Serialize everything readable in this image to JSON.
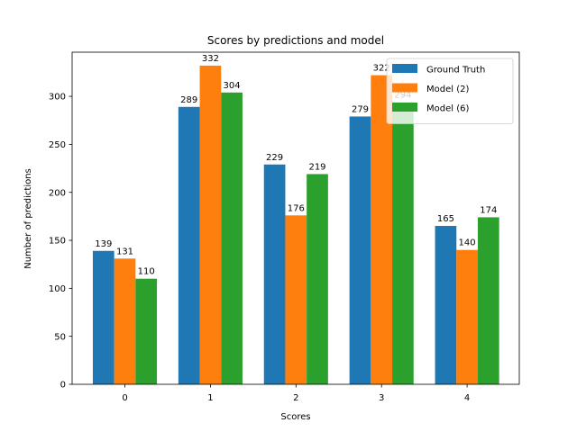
{
  "chart_data": {
    "type": "bar",
    "title": "Scores by predictions and model",
    "xlabel": "Scores",
    "ylabel": "Number of predictions",
    "categories": [
      "0",
      "1",
      "2",
      "3",
      "4"
    ],
    "ylim": [
      0,
      346
    ],
    "yticks": [
      0,
      50,
      100,
      150,
      200,
      250,
      300
    ],
    "grid": false,
    "legend_position": "top-right",
    "series": [
      {
        "name": "Ground Truth",
        "color": "#1f77b4",
        "values": [
          139,
          289,
          229,
          279,
          165
        ]
      },
      {
        "name": "Model (2)",
        "color": "#ff7f0e",
        "values": [
          131,
          332,
          176,
          322,
          140
        ]
      },
      {
        "name": "Model (6)",
        "color": "#2ca02c",
        "values": [
          110,
          304,
          219,
          294,
          174
        ]
      }
    ]
  }
}
